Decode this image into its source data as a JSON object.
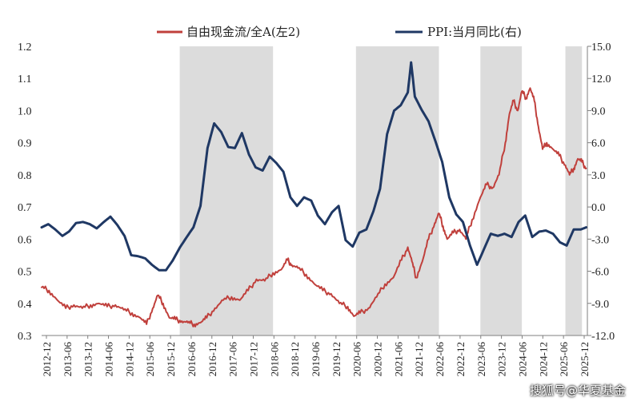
{
  "chart_data": {
    "type": "line",
    "title": "",
    "legend": [
      {
        "name": "自由现金流/全A(左2)",
        "color": "#c0403c",
        "axis": "left"
      },
      {
        "name": "PPI:当月同比(右)",
        "color": "#1f3864",
        "axis": "right"
      }
    ],
    "left_axis": {
      "min": 0.3,
      "max": 1.2,
      "ticks": [
        "0.3",
        "0.4",
        "0.5",
        "0.6",
        "0.7",
        "0.8",
        "0.9",
        "1.0",
        "1.1",
        "1.2"
      ]
    },
    "right_axis": {
      "min": -12.0,
      "max": 15.0,
      "ticks": [
        "-12.0",
        "-9.0",
        "-6.0",
        "-3.0",
        "0.0",
        "3.0",
        "6.0",
        "9.0",
        "12.0",
        "15.0"
      ]
    },
    "x_labels": [
      "2012-12",
      "2013-06",
      "2013-12",
      "2014-06",
      "2014-12",
      "2015-06",
      "2015-12",
      "2016-06",
      "2016-12",
      "2017-06",
      "2017-12",
      "2018-06",
      "2018-12",
      "2019-06",
      "2019-12",
      "2020-06",
      "2020-12",
      "2021-06",
      "2021-12",
      "2022-06",
      "2022-12",
      "2023-06",
      "2023-12",
      "2024-06",
      "2024-12",
      "2025-06",
      "2025-12"
    ],
    "shaded_periods": [
      {
        "start": 2016.25,
        "end": 2018.5
      },
      {
        "start": 2020.5,
        "end": 2022.5
      },
      {
        "start": 2023.5,
        "end": 2024.5
      },
      {
        "start": 2025.55,
        "end": 2025.95
      }
    ],
    "series": [
      {
        "name": "自由现金流/全A(左2)",
        "axis": "left",
        "points": [
          [
            2012.92,
            0.45
          ],
          [
            2013.1,
            0.44
          ],
          [
            2013.3,
            0.41
          ],
          [
            2013.5,
            0.385
          ],
          [
            2013.7,
            0.395
          ],
          [
            2013.9,
            0.385
          ],
          [
            2014.1,
            0.395
          ],
          [
            2014.3,
            0.4
          ],
          [
            2014.5,
            0.39
          ],
          [
            2014.7,
            0.395
          ],
          [
            2014.9,
            0.38
          ],
          [
            2015.1,
            0.37
          ],
          [
            2015.3,
            0.355
          ],
          [
            2015.45,
            0.335
          ],
          [
            2015.6,
            0.385
          ],
          [
            2015.72,
            0.425
          ],
          [
            2015.85,
            0.4
          ],
          [
            2016.0,
            0.355
          ],
          [
            2016.15,
            0.35
          ],
          [
            2016.3,
            0.345
          ],
          [
            2016.45,
            0.34
          ],
          [
            2016.6,
            0.335
          ],
          [
            2016.75,
            0.34
          ],
          [
            2016.9,
            0.355
          ],
          [
            2017.1,
            0.385
          ],
          [
            2017.3,
            0.41
          ],
          [
            2017.5,
            0.42
          ],
          [
            2017.7,
            0.41
          ],
          [
            2017.9,
            0.44
          ],
          [
            2018.1,
            0.475
          ],
          [
            2018.3,
            0.47
          ],
          [
            2018.5,
            0.495
          ],
          [
            2018.7,
            0.505
          ],
          [
            2018.85,
            0.535
          ],
          [
            2018.95,
            0.52
          ],
          [
            2019.1,
            0.51
          ],
          [
            2019.3,
            0.49
          ],
          [
            2019.5,
            0.46
          ],
          [
            2019.7,
            0.44
          ],
          [
            2019.9,
            0.43
          ],
          [
            2020.1,
            0.4
          ],
          [
            2020.3,
            0.39
          ],
          [
            2020.45,
            0.36
          ],
          [
            2020.6,
            0.37
          ],
          [
            2020.8,
            0.385
          ],
          [
            2021.0,
            0.42
          ],
          [
            2021.2,
            0.46
          ],
          [
            2021.4,
            0.48
          ],
          [
            2021.6,
            0.535
          ],
          [
            2021.75,
            0.575
          ],
          [
            2021.85,
            0.53
          ],
          [
            2021.95,
            0.48
          ],
          [
            2022.1,
            0.53
          ],
          [
            2022.25,
            0.6
          ],
          [
            2022.4,
            0.65
          ],
          [
            2022.5,
            0.68
          ],
          [
            2022.6,
            0.64
          ],
          [
            2022.7,
            0.6
          ],
          [
            2022.85,
            0.62
          ],
          [
            2023.0,
            0.63
          ],
          [
            2023.15,
            0.6
          ],
          [
            2023.3,
            0.66
          ],
          [
            2023.5,
            0.73
          ],
          [
            2023.65,
            0.77
          ],
          [
            2023.8,
            0.76
          ],
          [
            2023.95,
            0.8
          ],
          [
            2024.1,
            0.9
          ],
          [
            2024.2,
            0.99
          ],
          [
            2024.3,
            1.03
          ],
          [
            2024.4,
            1.0
          ],
          [
            2024.5,
            1.06
          ],
          [
            2024.6,
            1.04
          ],
          [
            2024.7,
            1.07
          ],
          [
            2024.8,
            1.03
          ],
          [
            2024.9,
            0.95
          ],
          [
            2025.0,
            0.88
          ],
          [
            2025.1,
            0.9
          ],
          [
            2025.25,
            0.88
          ],
          [
            2025.4,
            0.86
          ],
          [
            2025.55,
            0.83
          ],
          [
            2025.65,
            0.8
          ],
          [
            2025.75,
            0.82
          ],
          [
            2025.85,
            0.85
          ],
          [
            2025.95,
            0.84
          ],
          [
            2026.05,
            0.82
          ]
        ]
      },
      {
        "name": "PPI:当月同比(右)",
        "axis": "right",
        "points": [
          [
            2012.92,
            -1.9
          ],
          [
            2013.08,
            -1.6
          ],
          [
            2013.25,
            -2.1
          ],
          [
            2013.42,
            -2.7
          ],
          [
            2013.58,
            -2.3
          ],
          [
            2013.75,
            -1.5
          ],
          [
            2013.92,
            -1.4
          ],
          [
            2014.08,
            -1.6
          ],
          [
            2014.25,
            -2.0
          ],
          [
            2014.42,
            -1.4
          ],
          [
            2014.58,
            -0.9
          ],
          [
            2014.75,
            -1.7
          ],
          [
            2014.92,
            -2.7
          ],
          [
            2015.08,
            -4.5
          ],
          [
            2015.25,
            -4.6
          ],
          [
            2015.42,
            -4.8
          ],
          [
            2015.58,
            -5.4
          ],
          [
            2015.75,
            -5.9
          ],
          [
            2015.92,
            -5.9
          ],
          [
            2016.08,
            -5.0
          ],
          [
            2016.25,
            -3.8
          ],
          [
            2016.42,
            -2.8
          ],
          [
            2016.58,
            -1.9
          ],
          [
            2016.75,
            0.1
          ],
          [
            2016.92,
            5.5
          ],
          [
            2017.08,
            7.8
          ],
          [
            2017.25,
            7.0
          ],
          [
            2017.42,
            5.6
          ],
          [
            2017.58,
            5.5
          ],
          [
            2017.75,
            6.9
          ],
          [
            2017.92,
            4.9
          ],
          [
            2018.08,
            3.7
          ],
          [
            2018.25,
            3.4
          ],
          [
            2018.42,
            4.7
          ],
          [
            2018.58,
            4.1
          ],
          [
            2018.75,
            3.3
          ],
          [
            2018.92,
            0.9
          ],
          [
            2019.08,
            0.1
          ],
          [
            2019.25,
            0.9
          ],
          [
            2019.42,
            0.6
          ],
          [
            2019.58,
            -0.8
          ],
          [
            2019.75,
            -1.6
          ],
          [
            2019.92,
            -0.5
          ],
          [
            2020.08,
            0.1
          ],
          [
            2020.25,
            -3.1
          ],
          [
            2020.42,
            -3.7
          ],
          [
            2020.58,
            -2.4
          ],
          [
            2020.75,
            -2.1
          ],
          [
            2020.92,
            -0.4
          ],
          [
            2021.08,
            1.7
          ],
          [
            2021.25,
            6.8
          ],
          [
            2021.42,
            9.0
          ],
          [
            2021.58,
            9.5
          ],
          [
            2021.75,
            10.7
          ],
          [
            2021.83,
            13.5
          ],
          [
            2021.92,
            10.3
          ],
          [
            2022.08,
            9.1
          ],
          [
            2022.25,
            8.0
          ],
          [
            2022.42,
            6.1
          ],
          [
            2022.58,
            4.2
          ],
          [
            2022.75,
            0.9
          ],
          [
            2022.92,
            -0.7
          ],
          [
            2023.08,
            -1.4
          ],
          [
            2023.25,
            -3.6
          ],
          [
            2023.42,
            -5.4
          ],
          [
            2023.58,
            -4.0
          ],
          [
            2023.75,
            -2.5
          ],
          [
            2023.92,
            -2.7
          ],
          [
            2024.08,
            -2.5
          ],
          [
            2024.25,
            -2.8
          ],
          [
            2024.42,
            -1.4
          ],
          [
            2024.58,
            -0.8
          ],
          [
            2024.75,
            -2.8
          ],
          [
            2024.92,
            -2.3
          ],
          [
            2025.08,
            -2.2
          ],
          [
            2025.25,
            -2.5
          ],
          [
            2025.42,
            -3.3
          ],
          [
            2025.58,
            -3.6
          ],
          [
            2025.75,
            -2.1
          ],
          [
            2025.92,
            -2.1
          ],
          [
            2026.05,
            -1.9
          ]
        ]
      }
    ]
  },
  "watermark": "搜狐号@华夏基金"
}
